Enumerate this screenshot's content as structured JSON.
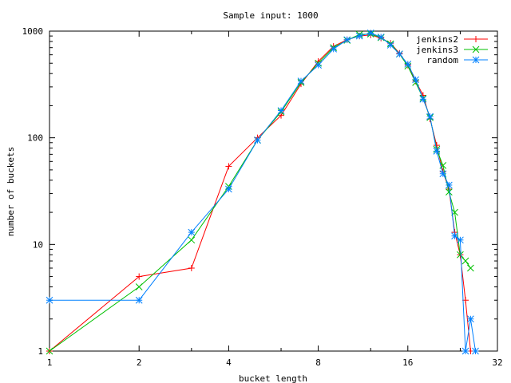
{
  "chart_data": {
    "type": "line",
    "title": "Sample input: 1000",
    "xlabel": "bucket length",
    "ylabel": "number of buckets",
    "xscale": "log2",
    "yscale": "log10",
    "xlim": [
      1,
      32
    ],
    "ylim": [
      1,
      1000
    ],
    "xticks": [
      1,
      2,
      4,
      8,
      16,
      32
    ],
    "xtick_labels": [
      "1",
      "2",
      "4",
      "8",
      "16",
      "32"
    ],
    "yticks": [
      1,
      10,
      100,
      1000
    ],
    "ytick_labels": [
      "1",
      "10",
      "100",
      "1000"
    ],
    "grid": false,
    "legend_position": "top-right",
    "series": [
      {
        "name": "jenkins2",
        "color": "#ff0000",
        "marker": "plus",
        "x": [
          1,
          2,
          3,
          4,
          5,
          6,
          7,
          8,
          9,
          10,
          11,
          12,
          13,
          14,
          15,
          16,
          17,
          18,
          19,
          20,
          21,
          22,
          23,
          24,
          25,
          26,
          27
        ],
        "y": [
          1,
          5,
          6,
          54,
          100,
          162,
          320,
          520,
          720,
          830,
          900,
          920,
          860,
          770,
          620,
          480,
          340,
          250,
          150,
          85,
          48,
          33,
          13,
          8,
          3,
          1,
          1
        ]
      },
      {
        "name": "jenkins3",
        "color": "#00c000",
        "marker": "cross",
        "x": [
          1,
          2,
          3,
          4,
          5,
          6,
          7,
          8,
          9,
          10,
          11,
          12,
          13,
          14,
          15,
          16,
          17,
          18,
          19,
          20,
          21,
          22,
          23,
          24,
          25,
          26
        ],
        "y": [
          1,
          4,
          11,
          35,
          95,
          175,
          330,
          500,
          700,
          820,
          930,
          940,
          870,
          760,
          610,
          470,
          330,
          235,
          155,
          78,
          55,
          31,
          20,
          8,
          7,
          6
        ]
      },
      {
        "name": "random",
        "color": "#0080ff",
        "marker": "star",
        "x": [
          1,
          2,
          3,
          4,
          5,
          6,
          7,
          8,
          9,
          10,
          11,
          12,
          13,
          14,
          15,
          16,
          17,
          18,
          19,
          20,
          21,
          22,
          23,
          24,
          25,
          26,
          27
        ],
        "y": [
          3,
          3,
          13,
          33,
          95,
          180,
          340,
          480,
          680,
          830,
          900,
          960,
          880,
          740,
          610,
          490,
          350,
          230,
          158,
          75,
          46,
          36,
          12,
          11,
          1,
          2,
          1
        ]
      }
    ]
  }
}
